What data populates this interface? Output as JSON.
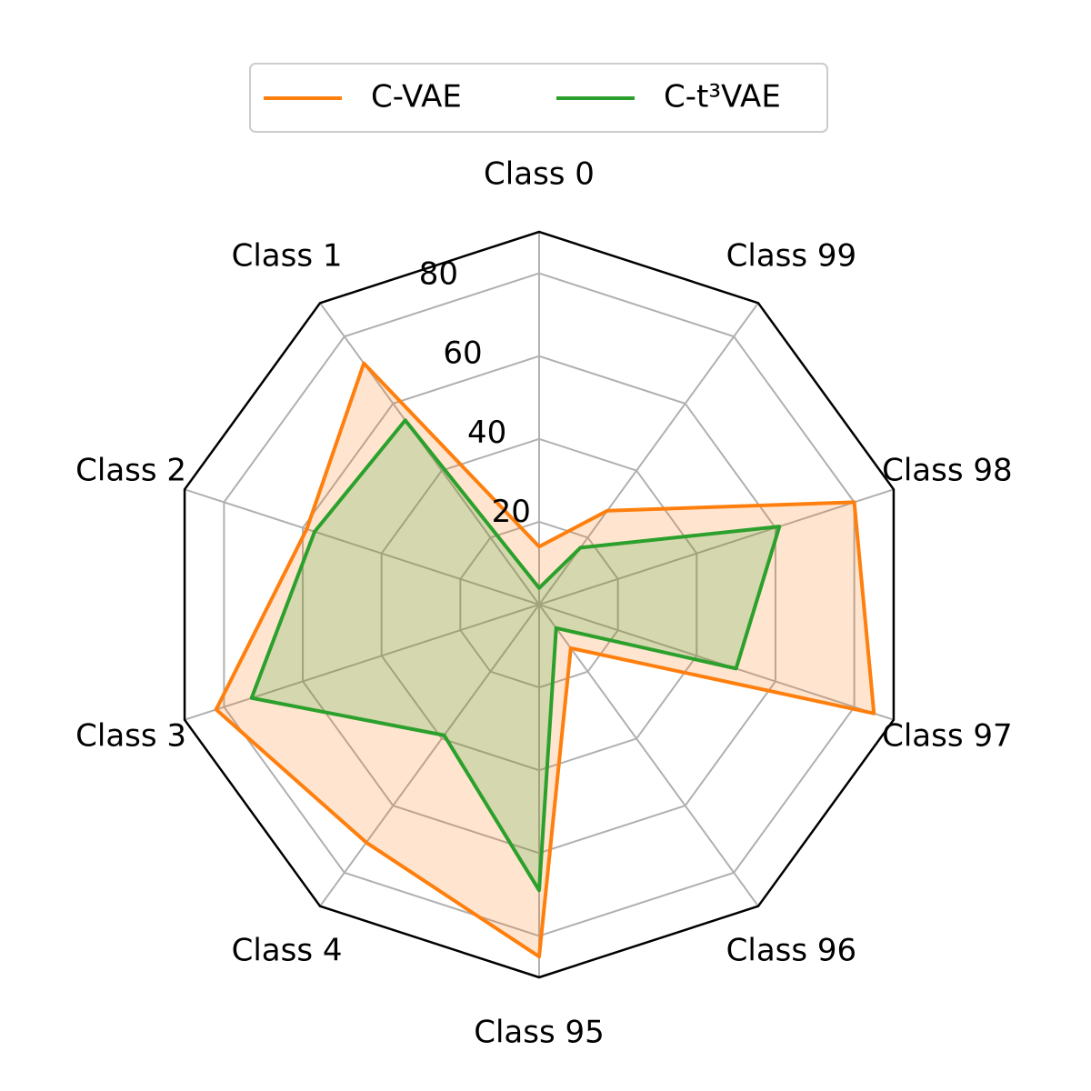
{
  "chart_data": {
    "type": "radar",
    "categories": [
      "Class 0",
      "Class 1",
      "Class 2",
      "Class 3",
      "Class 4",
      "Class 95",
      "Class 96",
      "Class 97",
      "Class 98",
      "Class 99"
    ],
    "series": [
      {
        "name": "C-VAE",
        "color": "#ff7f0e",
        "values": [
          14,
          72,
          59,
          82,
          71,
          85,
          13,
          85,
          80,
          28
        ]
      },
      {
        "name": "C-t³VAE",
        "color": "#2ca02c",
        "values": [
          4,
          55,
          57,
          73,
          39,
          69,
          7,
          50,
          61,
          17
        ]
      }
    ],
    "rlim": [
      0,
      90
    ],
    "rticks": [
      20,
      40,
      60,
      80
    ],
    "grid": true,
    "legend": "top"
  }
}
